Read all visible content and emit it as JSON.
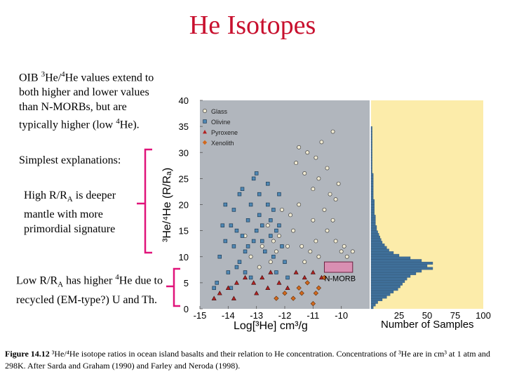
{
  "slide": {
    "title": "He Isotopes",
    "para1": {
      "a": "OIB ",
      "sup1": "3",
      "b": "He/",
      "sup2": "4",
      "c": "He values extend to both higher and lower values than N-MORBs, but are typically higher (low ",
      "sup3": "4",
      "d": "He)."
    },
    "para2": "Simplest explanations:",
    "bullet_high": {
      "a": "High R/R",
      "sub": "A",
      "b": " is deeper mantle with more primordial signature"
    },
    "bullet_low": {
      "a": "Low R/R",
      "sub": "A",
      "b": " has higher ",
      "sup": "4",
      "c": "He due to recycled (EM-type?) U and Th."
    },
    "caption": {
      "fig": "Figure 14.12",
      "text": " ³He/⁴He isotope ratios in ocean island basalts and their relation to He concentration. Concentrations of ³He are in cm³ at 1 atm and 298K. After Sarda and Graham (1990) and Farley and Neroda (1998)."
    }
  },
  "chart_data": [
    {
      "type": "scatter",
      "x_label": "Log[³He]  cm³/g",
      "y_label": "³He/⁴He (R/Rₐ)",
      "xlim": [
        -15,
        -9
      ],
      "ylim": [
        0,
        40
      ],
      "x_ticks": [
        "-15",
        "-14",
        "-13",
        "-12",
        "-11",
        "-10"
      ],
      "y_ticks": [
        "0",
        "5",
        "10",
        "15",
        "20",
        "25",
        "30",
        "35",
        "40"
      ],
      "legend": [
        "Glass",
        "Olivine",
        "Pyroxene",
        "Xenolith"
      ],
      "annotation": "N-MORB",
      "nmorb_box": {
        "x": [
          -10.6,
          -9.6
        ],
        "y": [
          7,
          9
        ]
      },
      "series": [
        {
          "name": "Glass",
          "color": "#f0ead2",
          "points": [
            [
              -11.5,
              31
            ],
            [
              -11.2,
              30
            ],
            [
              -10.9,
              29
            ],
            [
              -10.5,
              27
            ],
            [
              -10.8,
              25
            ],
            [
              -11.0,
              23
            ],
            [
              -10.4,
              22
            ],
            [
              -10.2,
              21
            ],
            [
              -11.6,
              28
            ],
            [
              -10.7,
              32
            ],
            [
              -10.3,
              34
            ],
            [
              -11.3,
              26
            ],
            [
              -10.1,
              24
            ],
            [
              -10.6,
              19
            ],
            [
              -12.6,
              16
            ],
            [
              -12.4,
              13
            ],
            [
              -12.2,
              14
            ],
            [
              -11.9,
              12
            ],
            [
              -11.7,
              15
            ],
            [
              -11.4,
              12
            ],
            [
              -12.8,
              12
            ],
            [
              -11.1,
              11
            ],
            [
              -10.9,
              13
            ],
            [
              -10.5,
              15
            ],
            [
              -10.0,
              11
            ],
            [
              -9.8,
              10
            ],
            [
              -9.6,
              11
            ],
            [
              -9.9,
              12
            ],
            [
              -11.8,
              18
            ],
            [
              -12.1,
              19
            ],
            [
              -11.5,
              20
            ],
            [
              -10.3,
              17
            ],
            [
              -12.5,
              9
            ],
            [
              -11.3,
              9
            ],
            [
              -10.8,
              10
            ],
            [
              -13.4,
              14
            ],
            [
              -13.2,
              10
            ],
            [
              -12.9,
              8
            ],
            [
              -12.3,
              11
            ],
            [
              -11.0,
              17
            ],
            [
              -10.2,
              13
            ]
          ]
        },
        {
          "name": "Olivine",
          "color": "#4f87b3",
          "points": [
            [
              -14.3,
              10
            ],
            [
              -14.1,
              13
            ],
            [
              -13.9,
              16
            ],
            [
              -13.8,
              19
            ],
            [
              -13.6,
              22
            ],
            [
              -13.5,
              14
            ],
            [
              -13.3,
              17
            ],
            [
              -13.2,
              20
            ],
            [
              -13.1,
              25
            ],
            [
              -13.0,
              15
            ],
            [
              -12.9,
              18
            ],
            [
              -12.8,
              13
            ],
            [
              -12.7,
              11
            ],
            [
              -12.6,
              20
            ],
            [
              -12.5,
              17
            ],
            [
              -12.4,
              10
            ],
            [
              -12.3,
              15
            ],
            [
              -12.2,
              22
            ],
            [
              -12.1,
              12
            ],
            [
              -12.0,
              9
            ],
            [
              -13.7,
              8
            ],
            [
              -13.4,
              11
            ],
            [
              -14.0,
              7
            ],
            [
              -13.2,
              6
            ],
            [
              -12.9,
              22
            ],
            [
              -13.5,
              23
            ],
            [
              -14.2,
              16
            ],
            [
              -13.0,
              26
            ],
            [
              -12.6,
              24
            ],
            [
              -13.8,
              12
            ],
            [
              -13.6,
              9
            ],
            [
              -13.1,
              13
            ],
            [
              -12.3,
              7
            ],
            [
              -14.4,
              5
            ],
            [
              -13.9,
              4
            ],
            [
              -12.8,
              16
            ],
            [
              -12.5,
              14
            ],
            [
              -13.3,
              12
            ],
            [
              -12.4,
              19
            ],
            [
              -14.1,
              20
            ],
            [
              -13.7,
              15
            ],
            [
              -12.2,
              16
            ],
            [
              -11.9,
              6
            ],
            [
              -14.5,
              4
            ],
            [
              -13.4,
              7
            ]
          ]
        },
        {
          "name": "Pyroxene",
          "color": "#b22222",
          "points": [
            [
              -14.5,
              2
            ],
            [
              -14.3,
              3
            ],
            [
              -14.0,
              4
            ],
            [
              -13.7,
              5
            ],
            [
              -13.4,
              6
            ],
            [
              -13.1,
              5
            ],
            [
              -12.8,
              6
            ],
            [
              -12.5,
              7
            ],
            [
              -12.2,
              5
            ],
            [
              -11.9,
              4
            ],
            [
              -11.6,
              7
            ],
            [
              -11.3,
              6
            ],
            [
              -11.0,
              7
            ],
            [
              -10.7,
              6
            ],
            [
              -13.8,
              2
            ],
            [
              -13.0,
              3
            ],
            [
              -12.6,
              4
            ]
          ]
        },
        {
          "name": "Xenolith",
          "color": "#d2691e",
          "points": [
            [
              -11.5,
              4
            ],
            [
              -11.2,
              5
            ],
            [
              -10.9,
              3
            ],
            [
              -10.6,
              6
            ],
            [
              -11.7,
              2
            ],
            [
              -11.0,
              1
            ],
            [
              -12.0,
              3
            ],
            [
              -12.3,
              2
            ],
            [
              -11.4,
              3
            ],
            [
              -10.8,
              4
            ]
          ]
        }
      ]
    },
    {
      "type": "bar",
      "orientation": "horizontal",
      "x_label": "Number of Samples",
      "x_ticks": [
        "25",
        "50",
        "75",
        "100"
      ],
      "xlim": [
        0,
        100
      ],
      "bin_width": 0.5,
      "bins_start": 0,
      "values": [
        2,
        4,
        6,
        10,
        14,
        17,
        20,
        24,
        26,
        28,
        30,
        32,
        35,
        40,
        45,
        55,
        50,
        55,
        45,
        35,
        25,
        20,
        16,
        14,
        12,
        10,
        9,
        8,
        7,
        6,
        5,
        5,
        4,
        4,
        4,
        4,
        3,
        3,
        3,
        3,
        3,
        3,
        2,
        2,
        2,
        2,
        2,
        2,
        2,
        2,
        2,
        2,
        1,
        1,
        1,
        1,
        1,
        1,
        1,
        1,
        1,
        1,
        1,
        1,
        1,
        1,
        1,
        1,
        1,
        1,
        0,
        0,
        0,
        0,
        0,
        0,
        0,
        0,
        0,
        0
      ]
    }
  ]
}
